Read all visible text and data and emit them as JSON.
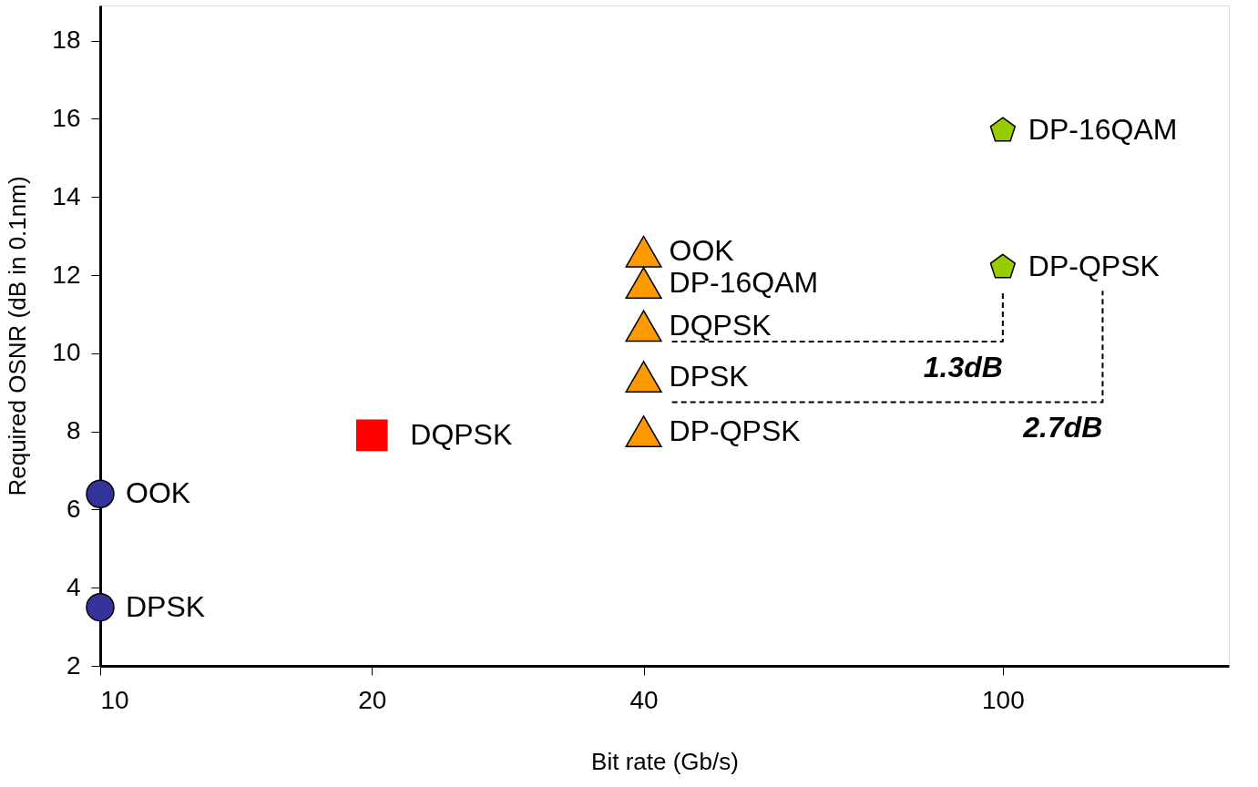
{
  "chart_data": {
    "type": "scatter",
    "xlabel": "Bit rate (Gb/s)",
    "ylabel": "Required OSNR (dB in 0.1nm)",
    "log": "x",
    "xlim": [
      10,
      178
    ],
    "xticks": [
      10,
      20,
      40,
      100
    ],
    "ylim": [
      2,
      18.9
    ],
    "yticks": [
      2,
      4,
      6,
      8,
      10,
      12,
      14,
      16,
      18
    ],
    "grid": false,
    "series": [
      {
        "color": "#333399",
        "marker": "circle",
        "x": [
          10,
          10
        ],
        "values": [
          6.4,
          3.5
        ],
        "value_labels": [
          "OOK",
          "DPSK"
        ]
      },
      {
        "color": "#ff0000",
        "marker": "square",
        "x": [
          20
        ],
        "values": [
          7.9
        ],
        "value_labels": [
          "DQPSK"
        ]
      },
      {
        "color": "#ff9900",
        "marker": "triangle",
        "x": [
          40,
          40,
          40,
          40,
          40
        ],
        "values": [
          12.6,
          11.8,
          10.7,
          9.4,
          8.0
        ],
        "value_labels": [
          "OOK",
          "DP-16QAM",
          "DQPSK",
          "DPSK",
          "DP-QPSK"
        ]
      },
      {
        "color": "#99cc00",
        "x": [
          100,
          100
        ],
        "values": [
          15.7,
          12.2
        ],
        "value_labels": [
          "DP-16QAM",
          "DP-QPSK"
        ]
      },
      {
        "type": "line",
        "color": "#000000",
        "line_style": "dashed",
        "x": [
          43,
          100,
          100
        ],
        "values": [
          10.3,
          10.3,
          11.6
        ]
      },
      {
        "type": "line",
        "color": "#000000",
        "line_style": "dashed",
        "x": [
          43,
          129,
          129
        ],
        "values": [
          8.75,
          8.75,
          11.6
        ]
      }
    ],
    "annotations": [
      "1.3dB",
      "2.7dB"
    ]
  }
}
